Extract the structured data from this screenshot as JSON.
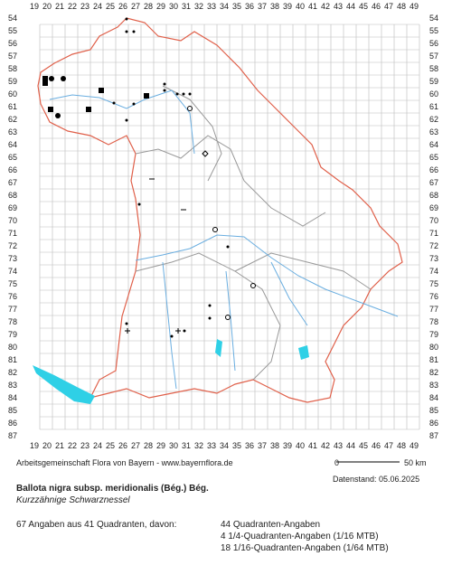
{
  "map": {
    "x_labels": [
      19,
      20,
      21,
      22,
      23,
      24,
      25,
      26,
      27,
      28,
      29,
      30,
      31,
      32,
      33,
      34,
      35,
      36,
      37,
      38,
      39,
      40,
      41,
      42,
      43,
      44,
      45,
      46,
      47,
      48,
      49
    ],
    "y_labels": [
      54,
      55,
      56,
      57,
      58,
      59,
      60,
      61,
      62,
      63,
      64,
      65,
      66,
      67,
      68,
      69,
      70,
      71,
      72,
      73,
      74,
      75,
      76,
      77,
      78,
      79,
      80,
      81,
      82,
      83,
      84,
      85,
      86,
      87
    ]
  },
  "credit": "Arbeitsgemeinschaft Flora von Bayern - www.bayernflora.de",
  "scale": {
    "zero": "0",
    "length": "50 km"
  },
  "date": "Datenstand: 05.06.2025",
  "title": "Ballota nigra subsp. meridionalis (Bég.) Bég.",
  "subtitle": "Kurzzähnige Schwarznessel",
  "summary": {
    "total": "67 Angaben aus 41 Quadranten, davon:",
    "lines": [
      "44 Quadranten-Angaben",
      "4 1/4-Quadranten-Angaben (1/16 MTB)",
      "18 1/16-Quadranten-Angaben (1/64 MTB)"
    ]
  }
}
